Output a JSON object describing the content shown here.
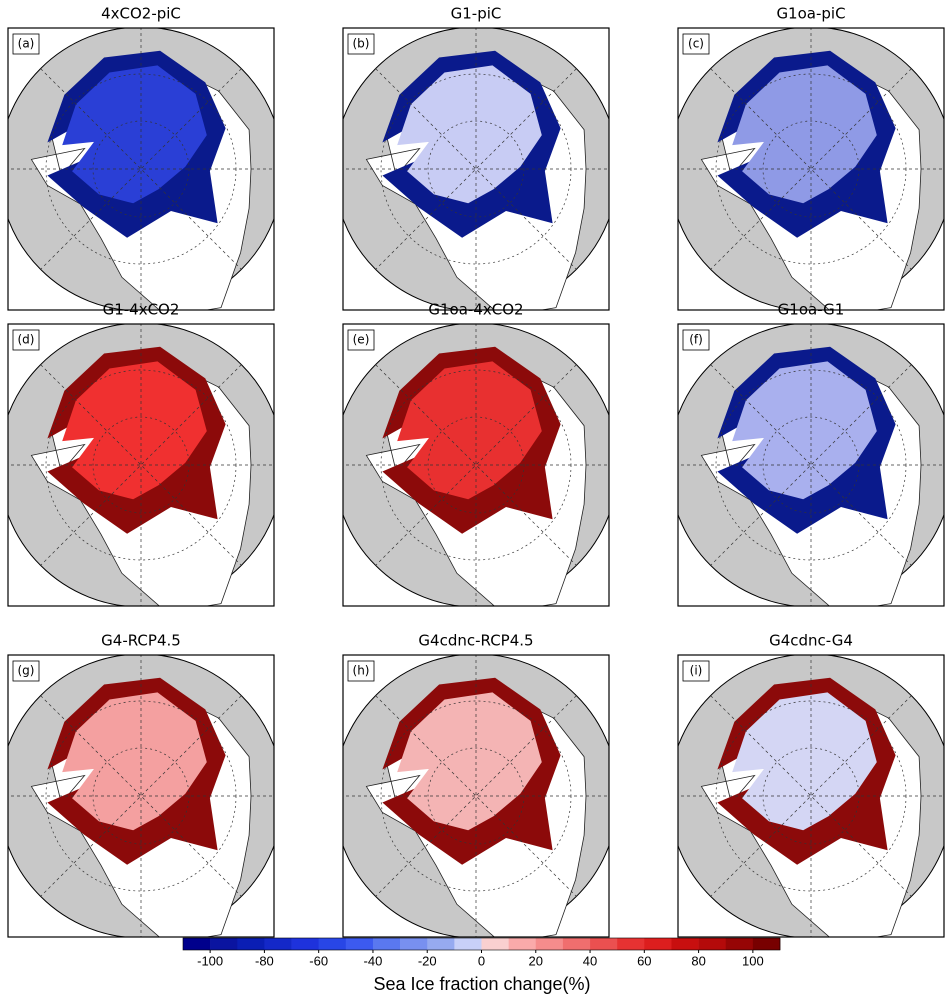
{
  "panels": [
    {
      "title": "4xCO2-piC",
      "label": "(a)",
      "ice_color": "#2a3fd6",
      "edge_color": "#0a1a8c"
    },
    {
      "title": "G1-piC",
      "label": "(b)",
      "ice_color": "#c8ccf4",
      "edge_color": "#0a1a8c"
    },
    {
      "title": "G1oa-piC",
      "label": "(c)",
      "ice_color": "#8f9ae6",
      "edge_color": "#0a1a8c"
    },
    {
      "title": "G1-4xCO2",
      "label": "(d)",
      "ice_color": "#f03030",
      "edge_color": "#8c0a0a"
    },
    {
      "title": "G1oa-4xCO2",
      "label": "(e)",
      "ice_color": "#e83030",
      "edge_color": "#8c0a0a"
    },
    {
      "title": "G1oa-G1",
      "label": "(f)",
      "ice_color": "#a9b0ee",
      "edge_color": "#0a1a8c"
    },
    {
      "title": "G4-RCP4.5",
      "label": "(g)",
      "ice_color": "#f4a0a0",
      "edge_color": "#8c0a0a"
    },
    {
      "title": "G4cdnc-RCP4.5",
      "label": "(h)",
      "ice_color": "#f4b4b4",
      "edge_color": "#8c0a0a"
    },
    {
      "title": "G4cdnc-G4",
      "label": "(i)",
      "ice_color": "#d4d6f4",
      "edge_color": "#8c0a0a"
    }
  ],
  "colorbar": {
    "label": "Sea Ice fraction change(%)",
    "ticks": [
      -100,
      -80,
      -60,
      -40,
      -20,
      0,
      20,
      40,
      60,
      80,
      100
    ],
    "range": [
      -110,
      110
    ],
    "colors": [
      "#00008c",
      "#0a14a0",
      "#0a1eb4",
      "#1428c8",
      "#1e32dc",
      "#2846e6",
      "#3c5af0",
      "#5a78f0",
      "#7890f0",
      "#96aaf0",
      "#c8d0f8",
      "#fad0d0",
      "#faaaaa",
      "#f58c8c",
      "#f06e6e",
      "#eb5050",
      "#e63232",
      "#dc1e1e",
      "#c80f0f",
      "#b40a0a",
      "#960505",
      "#780000"
    ]
  }
}
